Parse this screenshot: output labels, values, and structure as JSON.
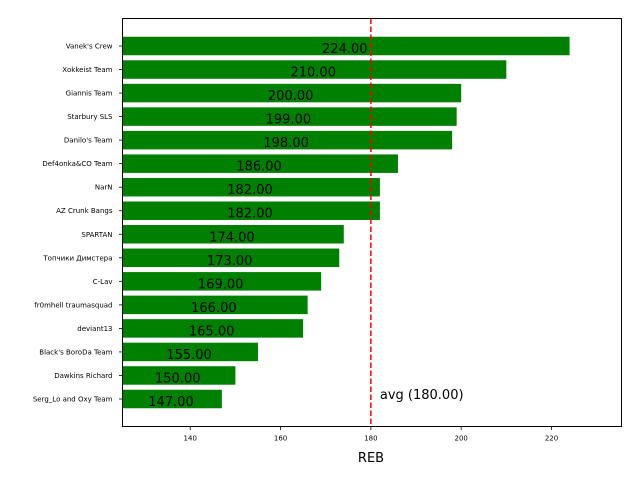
{
  "chart_data": {
    "type": "bar",
    "orientation": "horizontal",
    "categories": [
      "Vanek's Crew",
      "Xokkeist Team",
      "Giannis Team",
      "Starbury SLS",
      "Danilo's Team",
      "Def4onka&CO Team",
      "NarN",
      "AZ Crunk Bangs",
      "SPARTAN",
      "Топчики Димстера",
      "C-Lav",
      "fr0mhell traumasquad",
      "deviant13",
      "Black's BoroDa Team",
      "Dawkins Richard",
      "Serg_Lo and Oxy Team"
    ],
    "values": [
      224,
      210,
      200,
      199,
      198,
      186,
      182,
      182,
      174,
      173,
      169,
      166,
      165,
      155,
      150,
      147
    ],
    "value_labels": [
      "224.00",
      "210.00",
      "200.00",
      "199.00",
      "198.00",
      "186.00",
      "182.00",
      "182.00",
      "174.00",
      "173.00",
      "169.00",
      "166.00",
      "165.00",
      "155.00",
      "150.00",
      "147.00"
    ],
    "bar_color": "#008000",
    "xlabel": "REB",
    "ylabel": "",
    "title": "",
    "xlim": [
      125,
      235.5
    ],
    "xticks": [
      140,
      160,
      180,
      200,
      220
    ],
    "xtick_labels": [
      "140",
      "160",
      "180",
      "200",
      "220"
    ],
    "avg": {
      "value": 180,
      "label": "avg (180.00)",
      "color": "#ff0000"
    },
    "grid": false
  }
}
